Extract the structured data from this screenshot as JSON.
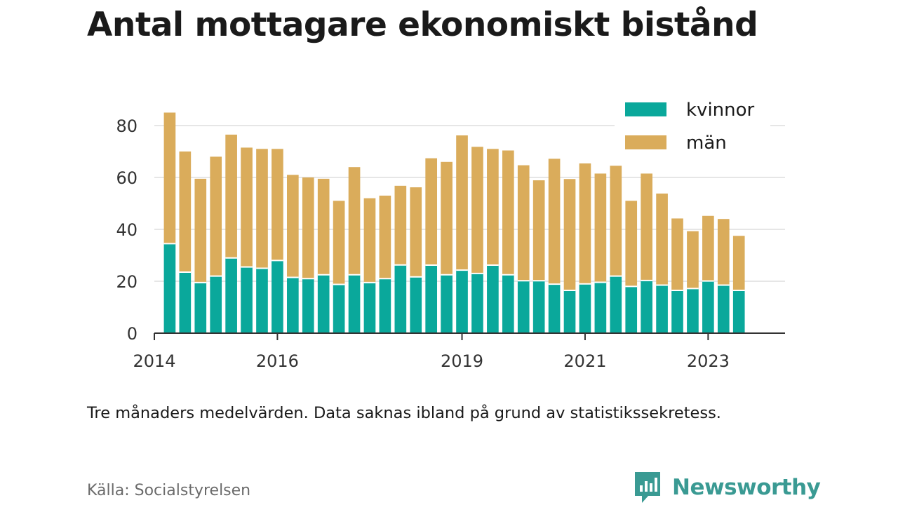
{
  "title": "Antal mottagare ekonomiskt bistånd",
  "note": "Tre månaders medelvärden. Data saknas ibland på grund av statistikssekretess.",
  "source": "Källa: Socialstyrelsen",
  "brand": "Newsworthy",
  "colors": {
    "kvinnor": "#0aa89b",
    "man": "#daac5b",
    "grid": "#dddddd",
    "axis": "#333333",
    "brand": "#3a9a93"
  },
  "chart_data": {
    "type": "bar",
    "stacked": true,
    "ylim": [
      0,
      90
    ],
    "yticks": [
      0,
      20,
      40,
      60,
      80
    ],
    "xlim": [
      2014.0,
      2024.25
    ],
    "xticks": [
      2014,
      2016,
      2019,
      2021,
      2023
    ],
    "xtick_labels": [
      "2014",
      "2016",
      "2019",
      "2021",
      "2023"
    ],
    "legend_position": "top-right",
    "grid": true,
    "x": [
      2014.25,
      2014.5,
      2014.75,
      2015.0,
      2015.25,
      2015.5,
      2015.75,
      2016.0,
      2016.25,
      2016.5,
      2016.75,
      2017.0,
      2017.25,
      2017.5,
      2017.75,
      2018.0,
      2018.25,
      2018.5,
      2018.75,
      2019.0,
      2019.25,
      2019.5,
      2019.75,
      2020.0,
      2020.25,
      2020.5,
      2020.75,
      2021.0,
      2021.25,
      2021.5,
      2021.75,
      2022.0,
      2022.25,
      2022.5,
      2022.75,
      2023.0,
      2023.25,
      2023.5
    ],
    "series": [
      {
        "name": "kvinnor",
        "values": [
          34.5,
          23.5,
          19.5,
          22,
          29,
          25.5,
          25,
          28,
          21.5,
          21,
          22.5,
          18.8,
          22.5,
          19.5,
          21,
          26.3,
          21.7,
          26.2,
          22.5,
          24.3,
          23,
          26.2,
          22.5,
          20.2,
          20.2,
          18.9,
          16.5,
          19,
          19.6,
          22,
          18,
          20.3,
          18.5,
          16.5,
          17.2,
          20.1,
          18.5,
          16.5
        ]
      },
      {
        "name": "män",
        "values": [
          50.5,
          46.5,
          40,
          46,
          47.5,
          46,
          46,
          43,
          39.5,
          39,
          37,
          32.2,
          41.5,
          32.5,
          32,
          30.5,
          34.5,
          41.2,
          43.5,
          51.9,
          48.8,
          44.8,
          47.9,
          44.5,
          38.7,
          48.3,
          42.9,
          46.4,
          41.9,
          42.5,
          33,
          41.2,
          35.3,
          27.7,
          22.1,
          25.1,
          25.5,
          21
        ]
      }
    ]
  }
}
